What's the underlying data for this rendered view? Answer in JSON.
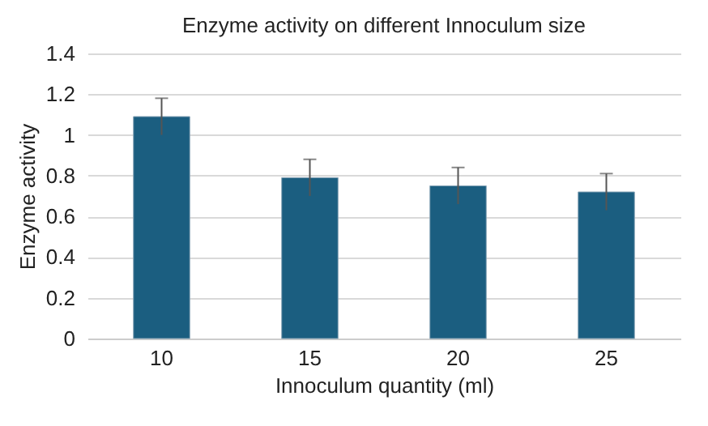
{
  "chart_data": {
    "type": "bar",
    "title": "Enzyme activity on different Innoculum  size",
    "xlabel": "Innoculum quantity (ml)",
    "ylabel": "Enzyme activity",
    "categories": [
      "10",
      "15",
      "20",
      "25"
    ],
    "values": [
      1.09,
      0.79,
      0.75,
      0.72
    ],
    "errors": [
      0.09,
      0.09,
      0.09,
      0.09
    ],
    "color": "#1b5e80",
    "ylim": [
      0,
      1.4
    ],
    "yticks": [
      0,
      0.2,
      0.4,
      0.6,
      0.8,
      1,
      1.2,
      1.4
    ],
    "grid": "y"
  }
}
